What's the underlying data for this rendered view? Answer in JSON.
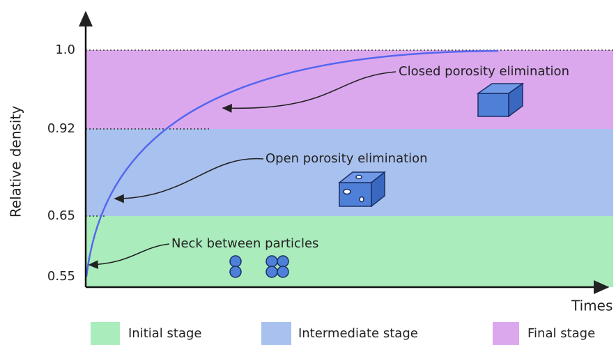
{
  "axes": {
    "y_label": "Relative density",
    "x_label": "Times",
    "y_ticks": [
      "1.0",
      "0.92",
      "0.65",
      "0.55"
    ]
  },
  "annotations": {
    "final": "Closed porosity elimination",
    "intermediate": "Open porosity elimination",
    "initial": "Neck between particles"
  },
  "legend": [
    "Initial stage",
    "Intermediate stage",
    "Final stage"
  ]
}
